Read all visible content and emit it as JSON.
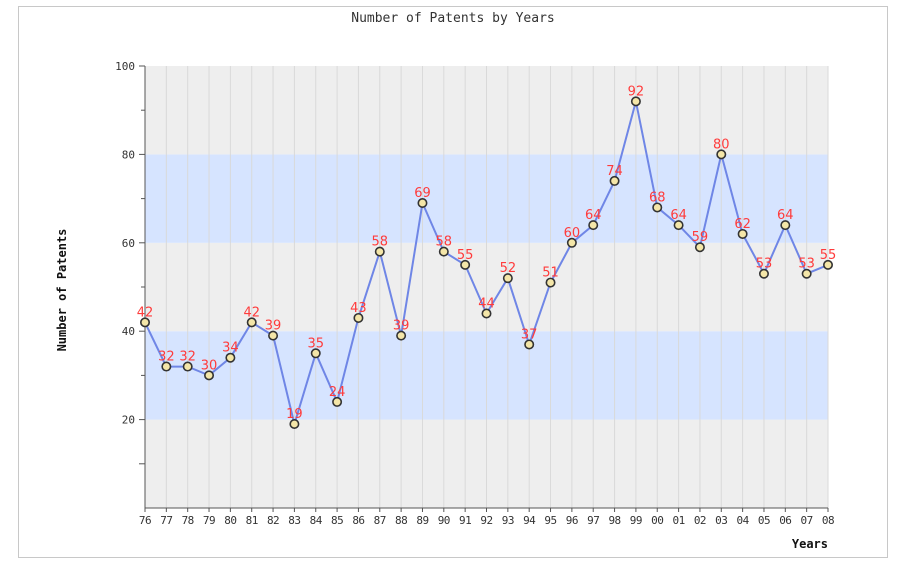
{
  "chart_data": {
    "type": "line",
    "title": "Number of Patents by Years",
    "xlabel": "Years",
    "ylabel": "Number of Patents",
    "ylim": [
      0,
      100
    ],
    "yticks": [
      20,
      40,
      60,
      80,
      100
    ],
    "grid": true,
    "x": [
      "76",
      "77",
      "78",
      "79",
      "80",
      "81",
      "82",
      "83",
      "84",
      "85",
      "86",
      "87",
      "88",
      "89",
      "90",
      "91",
      "92",
      "93",
      "94",
      "95",
      "96",
      "97",
      "98",
      "99",
      "00",
      "01",
      "02",
      "03",
      "04",
      "05",
      "06",
      "07",
      "08"
    ],
    "series": [
      {
        "values": [
          42,
          32,
          32,
          30,
          34,
          42,
          39,
          19,
          35,
          24,
          43,
          58,
          39,
          69,
          58,
          55,
          44,
          52,
          37,
          51,
          60,
          64,
          74,
          92,
          68,
          64,
          59,
          80,
          62,
          53,
          64,
          53,
          55
        ],
        "labels": [
          "42",
          "32",
          "32",
          "30",
          "34",
          "42",
          "39",
          "19",
          "35",
          "24",
          "43",
          "58",
          "39",
          "69",
          "58",
          "55",
          "44",
          "52",
          "37",
          "51",
          "60",
          "64",
          "74",
          "92",
          "68",
          "64",
          "59",
          "80",
          "62",
          "53",
          "64",
          "53",
          "55"
        ]
      }
    ],
    "colors": {
      "line": "#6f86e6",
      "marker_edge": "#333333",
      "marker_fill": "#f4e6a8",
      "label": "#ff3b3b",
      "band_blue": "#d6e4ff",
      "band_gray": "#eeeeee",
      "vgrid": "#d9d9d9"
    }
  }
}
